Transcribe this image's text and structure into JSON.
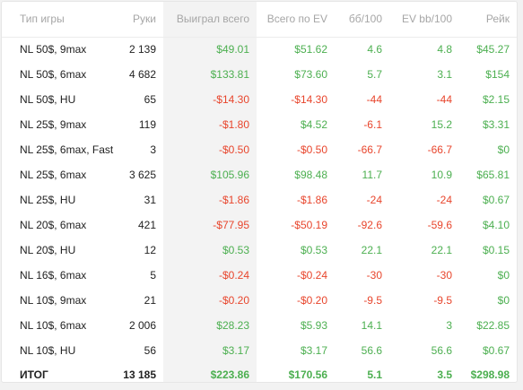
{
  "columns": [
    "Тип игры",
    "Руки",
    "Выиграл всего",
    "Всего по EV",
    "бб/100",
    "EV bb/100",
    "Рейк"
  ],
  "rows": [
    {
      "game": "NL 50$, 9max",
      "hands": "2 139",
      "won": "$49.01",
      "ev": "$51.62",
      "bb": "4.6",
      "evbb": "4.8",
      "rake": "$45.27"
    },
    {
      "game": "NL 50$, 6max",
      "hands": "4 682",
      "won": "$133.81",
      "ev": "$73.60",
      "bb": "5.7",
      "evbb": "3.1",
      "rake": "$154"
    },
    {
      "game": "NL 50$, HU",
      "hands": "65",
      "won": "-$14.30",
      "ev": "-$14.30",
      "bb": "-44",
      "evbb": "-44",
      "rake": "$2.15"
    },
    {
      "game": "NL 25$, 9max",
      "hands": "119",
      "won": "-$1.80",
      "ev": "$4.52",
      "bb": "-6.1",
      "evbb": "15.2",
      "rake": "$3.31"
    },
    {
      "game": "NL 25$, 6max, Fast",
      "hands": "3",
      "won": "-$0.50",
      "ev": "-$0.50",
      "bb": "-66.7",
      "evbb": "-66.7",
      "rake": "$0"
    },
    {
      "game": "NL 25$, 6max",
      "hands": "3 625",
      "won": "$105.96",
      "ev": "$98.48",
      "bb": "11.7",
      "evbb": "10.9",
      "rake": "$65.81"
    },
    {
      "game": "NL 25$, HU",
      "hands": "31",
      "won": "-$1.86",
      "ev": "-$1.86",
      "bb": "-24",
      "evbb": "-24",
      "rake": "$0.67"
    },
    {
      "game": "NL 20$, 6max",
      "hands": "421",
      "won": "-$77.95",
      "ev": "-$50.19",
      "bb": "-92.6",
      "evbb": "-59.6",
      "rake": "$4.10"
    },
    {
      "game": "NL 20$, HU",
      "hands": "12",
      "won": "$0.53",
      "ev": "$0.53",
      "bb": "22.1",
      "evbb": "22.1",
      "rake": "$0.15"
    },
    {
      "game": "NL 16$, 6max",
      "hands": "5",
      "won": "-$0.24",
      "ev": "-$0.24",
      "bb": "-30",
      "evbb": "-30",
      "rake": "$0"
    },
    {
      "game": "NL 10$, 9max",
      "hands": "21",
      "won": "-$0.20",
      "ev": "-$0.20",
      "bb": "-9.5",
      "evbb": "-9.5",
      "rake": "$0"
    },
    {
      "game": "NL 10$, 6max",
      "hands": "2 006",
      "won": "$28.23",
      "ev": "$5.93",
      "bb": "14.1",
      "evbb": "3",
      "rake": "$22.85"
    },
    {
      "game": "NL 10$, HU",
      "hands": "56",
      "won": "$3.17",
      "ev": "$3.17",
      "bb": "56.6",
      "evbb": "56.6",
      "rake": "$0.67"
    }
  ],
  "total": {
    "game": "ИТОГ",
    "hands": "13 185",
    "won": "$223.86",
    "ev": "$170.56",
    "bb": "5.1",
    "evbb": "3.5",
    "rake": "$298.98"
  },
  "colors": {
    "positive": "#4caf50",
    "negative": "#e8452c",
    "sorted_column_bg": "#f3f3f3"
  }
}
